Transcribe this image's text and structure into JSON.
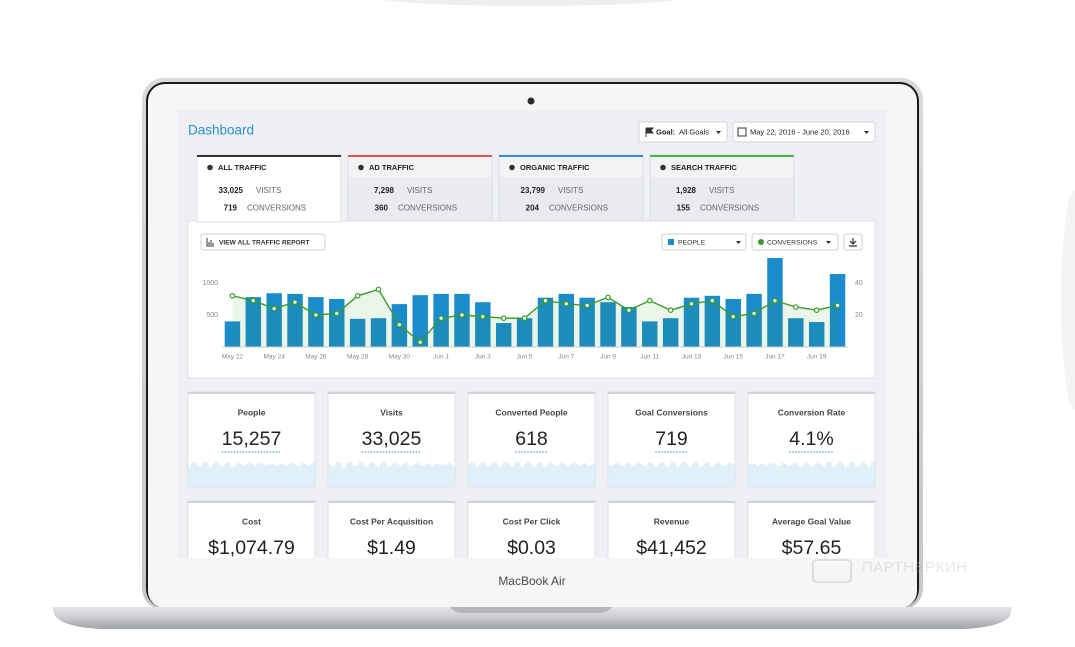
{
  "header": {
    "title": "Dashboard",
    "goal_label": "Goal:",
    "goal_value": "All Goals",
    "date_range": "May 22, 2016 - June 20, 2016"
  },
  "tabs": [
    {
      "title": "ALL TRAFFIC",
      "visits": "33,025",
      "visits_label": "VISITS",
      "conversions": "719",
      "conversions_label": "CONVERSIONS",
      "color": "#333333"
    },
    {
      "title": "AD TRAFFIC",
      "visits": "7,298",
      "visits_label": "VISITS",
      "conversions": "360",
      "conversions_label": "CONVERSIONS",
      "color": "#e05252"
    },
    {
      "title": "ORGANIC TRAFFIC",
      "visits": "23,799",
      "visits_label": "VISITS",
      "conversions": "204",
      "conversions_label": "CONVERSIONS",
      "color": "#3b8fd9"
    },
    {
      "title": "SEARCH TRAFFIC",
      "visits": "1,928",
      "visits_label": "VISITS",
      "conversions": "155",
      "conversions_label": "CONVERSIONS",
      "color": "#4caf50"
    }
  ],
  "chart_data": {
    "type": "bar",
    "button": "VIEW ALL TRAFFIC REPORT",
    "categories": [
      "May 22",
      null,
      "May 24",
      null,
      "May 26",
      null,
      "May 28",
      null,
      "May 30",
      null,
      "Jun 1",
      null,
      "Jun 3",
      null,
      "Jun 5",
      null,
      "Jun 7",
      null,
      "Jun 9",
      null,
      "Jun 11",
      null,
      "Jun 13",
      null,
      "Jun 15",
      null,
      "Jun 17",
      null,
      "Jun 19",
      null
    ],
    "series": [
      {
        "name": "PEOPLE",
        "color": "#1a8bcb",
        "values": [
          400,
          780,
          840,
          830,
          780,
          750,
          440,
          450,
          670,
          810,
          830,
          830,
          700,
          375,
          450,
          770,
          830,
          770,
          700,
          625,
          400,
          450,
          770,
          800,
          750,
          830,
          1390,
          450,
          390,
          1140
        ]
      },
      {
        "name": "CONVERSIONS",
        "color": "#3a9b2b",
        "axis": "y2",
        "type": "line",
        "values": [
          32,
          29,
          24,
          28,
          20,
          21,
          32,
          36,
          14,
          3,
          18,
          20,
          19,
          18,
          18,
          29,
          27,
          26,
          31,
          23,
          29,
          23,
          27,
          29,
          19,
          21,
          29,
          25,
          23,
          26
        ]
      }
    ],
    "ylim": [
      0,
      1500
    ],
    "yticks": [
      500,
      1000
    ],
    "y2lim": [
      0,
      60
    ],
    "y2ticks": [
      20,
      40
    ],
    "grid": false
  },
  "kpis": [
    {
      "label": "People",
      "value": "15,257"
    },
    {
      "label": "Visits",
      "value": "33,025"
    },
    {
      "label": "Converted People",
      "value": "618"
    },
    {
      "label": "Goal Conversions",
      "value": "719"
    },
    {
      "label": "Conversion Rate",
      "value": "4.1%"
    },
    {
      "label": "Cost",
      "value": "$1,074.79"
    },
    {
      "label": "Cost Per Acquisition",
      "value": "$1.49"
    },
    {
      "label": "Cost Per Click",
      "value": "$0.03"
    },
    {
      "label": "Revenue",
      "value": "$41,452"
    },
    {
      "label": "Average Goal Value",
      "value": "$57.65"
    }
  ],
  "device": {
    "brand": "MacBook Air"
  },
  "watermark": "ПАРТНЕРКИН"
}
